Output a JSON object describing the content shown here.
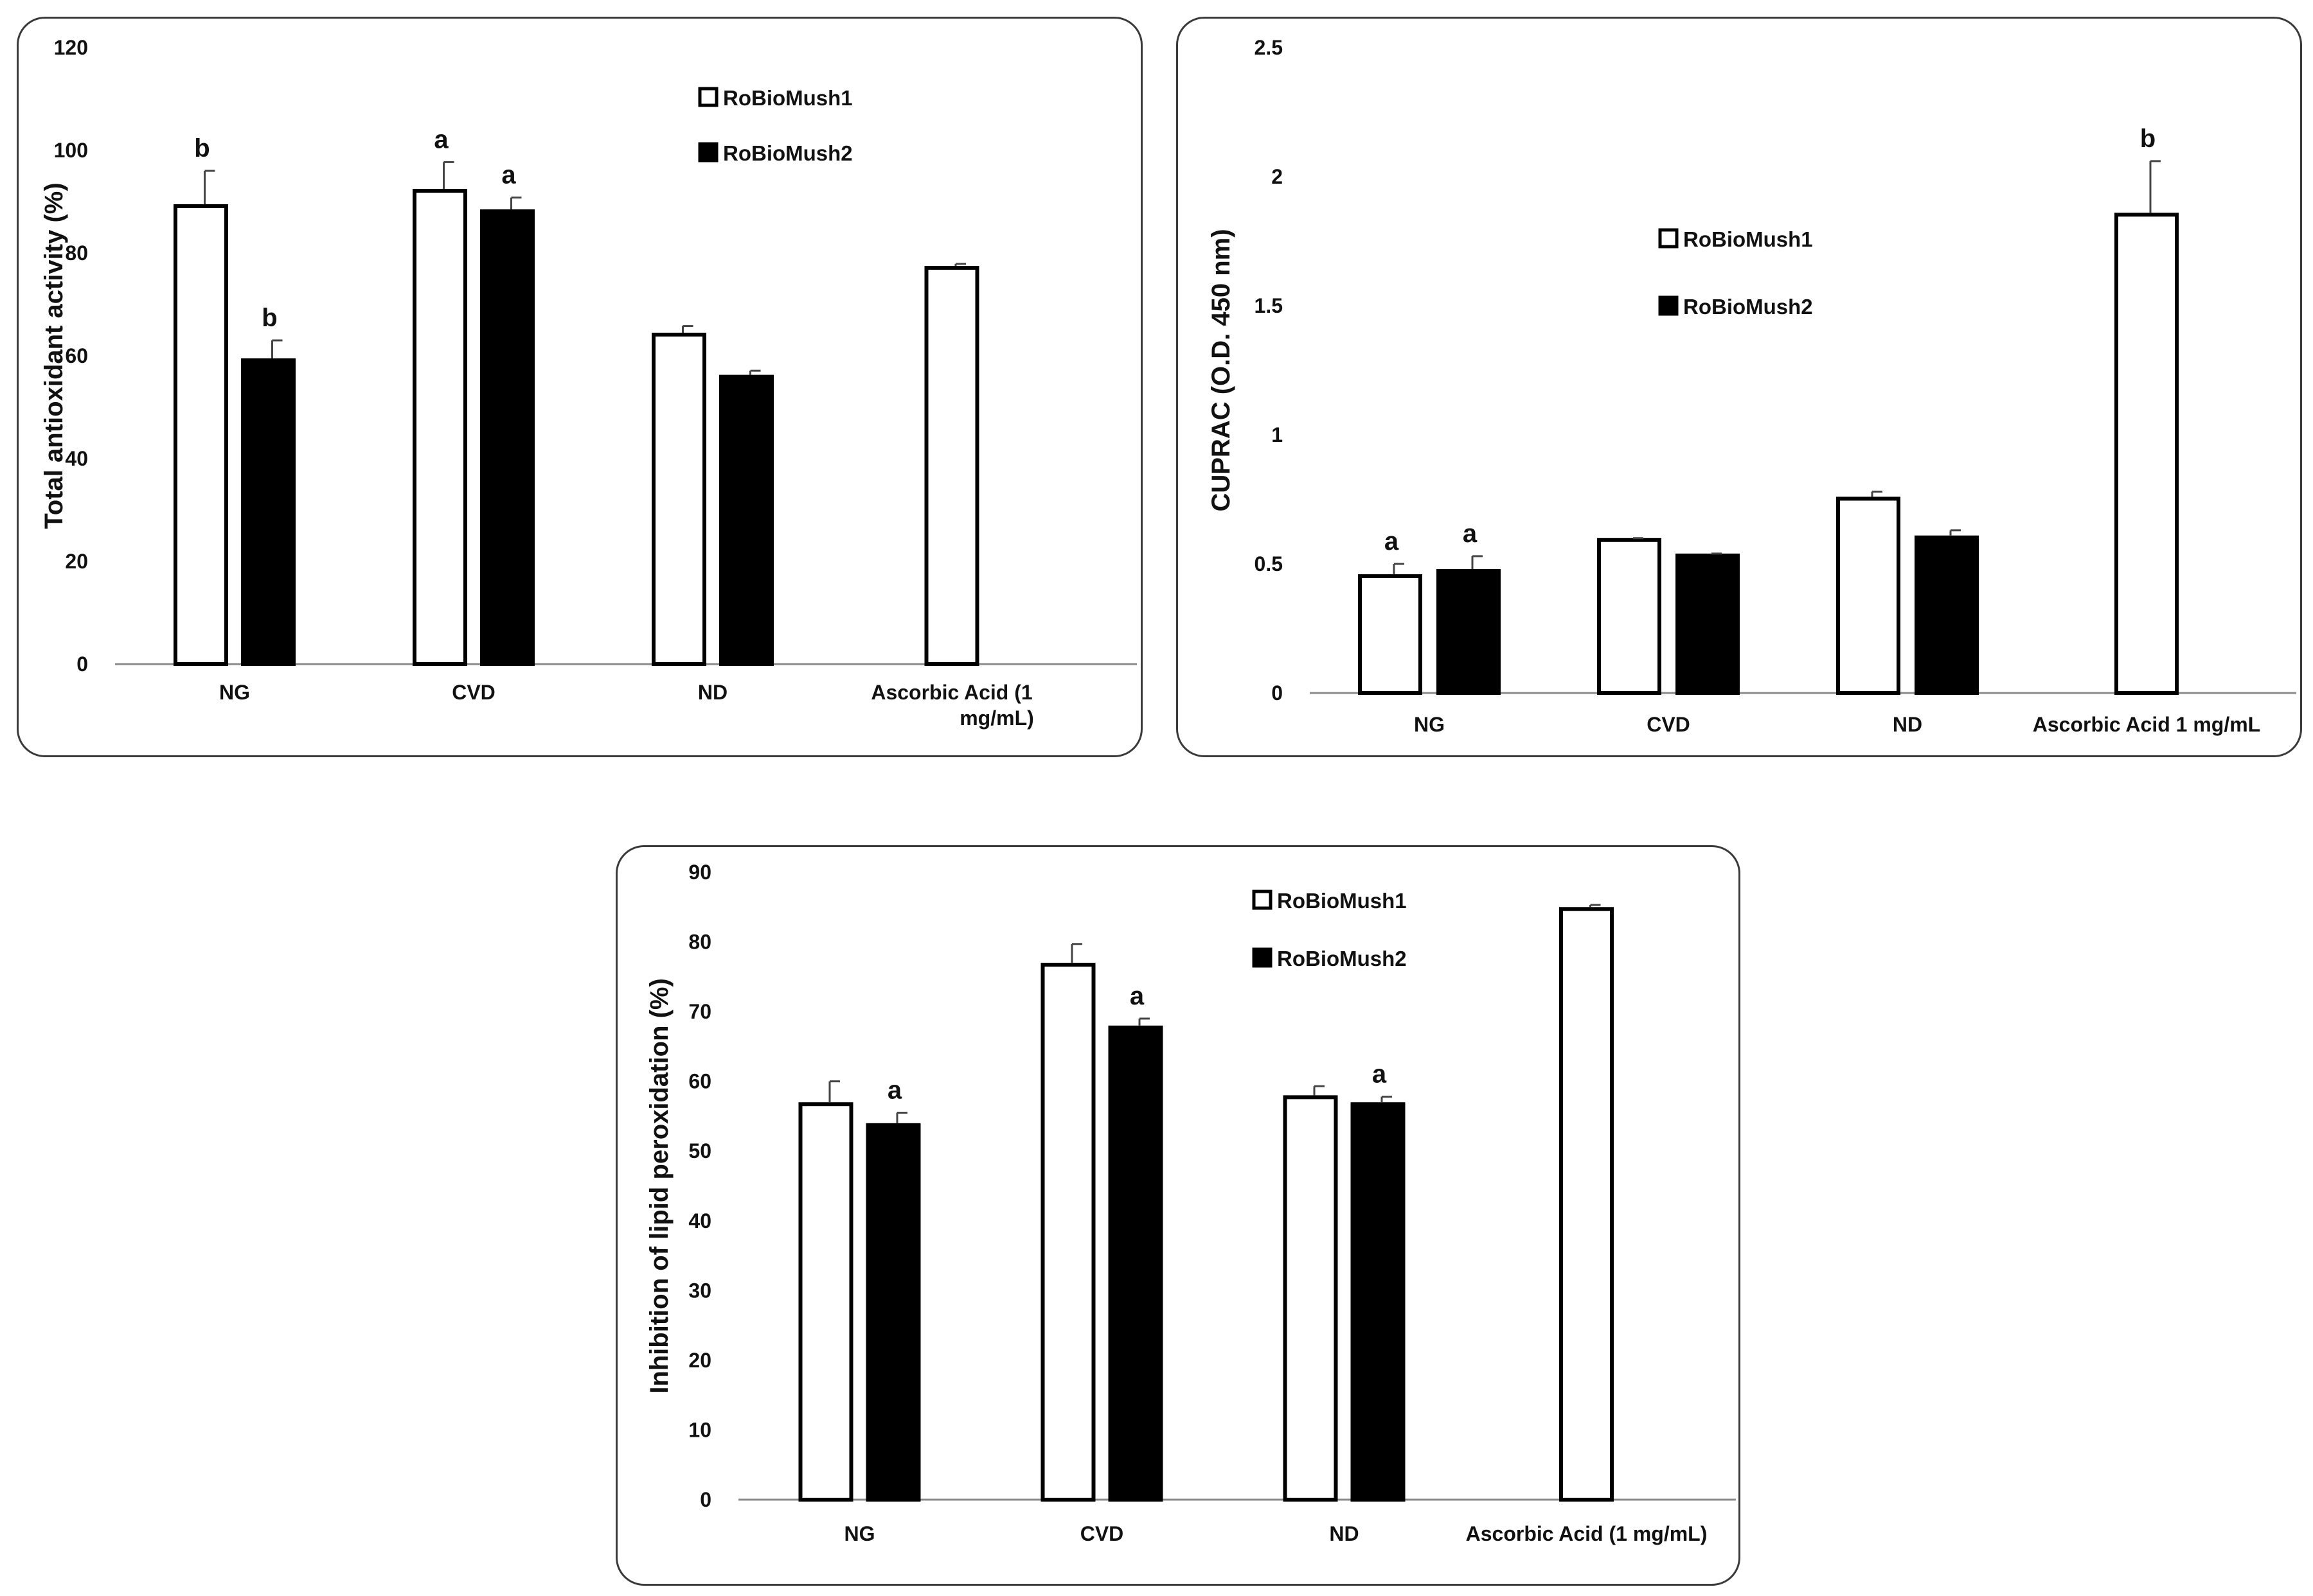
{
  "chart_data": [
    {
      "id": "p1",
      "type": "bar",
      "title": "",
      "ylabel": "Total antioxidant activity (%)",
      "xlabel": "",
      "ylim": [
        0,
        120
      ],
      "yticks": [
        0,
        20,
        40,
        60,
        80,
        100,
        120
      ],
      "ytick_labels": [
        "0",
        "20",
        "40",
        "60",
        "80",
        "100",
        "120"
      ],
      "categories": [
        "NG",
        "CVD",
        "ND",
        "Ascorbic Acid (1 mg/mL)"
      ],
      "category_lines": [
        [
          "NG"
        ],
        [
          "CVD"
        ],
        [
          "ND"
        ],
        [
          "Ascorbic Acid (1",
          "mg/mL)"
        ]
      ],
      "legend": [
        "RoBioMush1",
        "RoBioMush2"
      ],
      "series": [
        {
          "name": "RoBioMush1",
          "fill": "#ffffff",
          "values": [
            89.5,
            92.5,
            64.5,
            77.5
          ],
          "errors": [
            6.5,
            5.2,
            1.3,
            0.4
          ],
          "letters": [
            "b",
            "a",
            "",
            ""
          ]
        },
        {
          "name": "RoBioMush2",
          "fill": "#000000",
          "values": [
            59.5,
            88.5,
            56.3,
            null
          ],
          "errors": [
            3.5,
            2.3,
            0.8,
            null
          ],
          "letters": [
            "b",
            "a",
            "",
            ""
          ]
        }
      ]
    },
    {
      "id": "p2",
      "type": "bar",
      "title": "",
      "ylabel": "CUPRAC (O.D. 450 nm)",
      "xlabel": "",
      "ylim": [
        0,
        2.5
      ],
      "yticks": [
        0,
        0.5,
        1,
        1.5,
        2,
        2.5
      ],
      "ytick_labels": [
        "0",
        "0.5",
        "1",
        "1.5",
        "2",
        "2.5"
      ],
      "categories": [
        "NG",
        "CVD",
        "ND",
        "Ascorbic Acid 1 mg/mL"
      ],
      "category_lines": [
        [
          "NG"
        ],
        [
          "CVD"
        ],
        [
          "ND"
        ],
        [
          "Ascorbic Acid 1 mg/mL"
        ]
      ],
      "legend": [
        "RoBioMush1",
        "RoBioMush2"
      ],
      "series": [
        {
          "name": "RoBioMush1",
          "fill": "#ffffff",
          "values": [
            0.46,
            0.6,
            0.76,
            1.86
          ],
          "errors": [
            0.04,
            0.0,
            0.02,
            0.2
          ],
          "letters": [
            "a",
            "",
            "",
            "b"
          ]
        },
        {
          "name": "RoBioMush2",
          "fill": "#000000",
          "values": [
            0.48,
            0.54,
            0.61,
            null
          ],
          "errors": [
            0.05,
            0.0,
            0.02,
            null
          ],
          "letters": [
            "a",
            "",
            "",
            ""
          ]
        }
      ]
    },
    {
      "id": "p3",
      "type": "bar",
      "title": "",
      "ylabel": "Inhibition of lipid peroxidation (%)",
      "xlabel": "",
      "ylim": [
        0,
        90
      ],
      "yticks": [
        0,
        10,
        20,
        30,
        40,
        50,
        60,
        70,
        80,
        90
      ],
      "ytick_labels": [
        "0",
        "10",
        "20",
        "30",
        "40",
        "50",
        "60",
        "70",
        "80",
        "90"
      ],
      "categories": [
        "NG",
        "CVD",
        "ND",
        "Ascorbic Acid (1 mg/mL)"
      ],
      "category_lines": [
        [
          "NG"
        ],
        [
          "CVD"
        ],
        [
          "ND"
        ],
        [
          "Ascorbic Acid (1 mg/mL)"
        ]
      ],
      "legend": [
        "RoBioMush1",
        "RoBioMush2"
      ],
      "series": [
        {
          "name": "RoBioMush1",
          "fill": "#ffffff",
          "values": [
            57.0,
            77.0,
            58.0,
            85.0
          ],
          "errors": [
            3.0,
            2.7,
            1.3,
            0.3
          ],
          "letters": [
            "",
            "",
            "",
            ""
          ]
        },
        {
          "name": "RoBioMush2",
          "fill": "#000000",
          "values": [
            54.0,
            68.0,
            57.0,
            null
          ],
          "errors": [
            1.5,
            1.0,
            0.8,
            null
          ],
          "letters": [
            "a",
            "a",
            "a",
            ""
          ]
        }
      ]
    }
  ]
}
